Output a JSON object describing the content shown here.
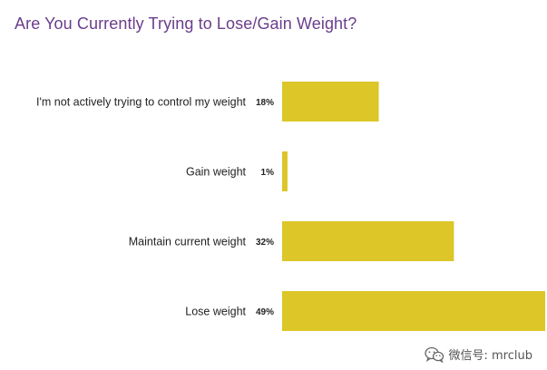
{
  "chart_data": {
    "type": "bar",
    "orientation": "horizontal",
    "title": "Are You Currently Trying to Lose/Gain Weight?",
    "categories": [
      "I'm not actively trying to control my weight",
      "Gain weight",
      "Maintain current weight",
      "Lose weight"
    ],
    "values": [
      18,
      1,
      32,
      49
    ],
    "value_labels": [
      "18%",
      "1%",
      "32%",
      "49%"
    ],
    "unit": "%",
    "xlim": [
      0,
      49
    ],
    "grid": false,
    "legend": "none",
    "colors": {
      "bar": "#dcc628",
      "title": "#6b3d8c",
      "text": "#222222"
    }
  },
  "watermark": {
    "icon": "wechat-icon",
    "text": "微信号: mrclub"
  }
}
